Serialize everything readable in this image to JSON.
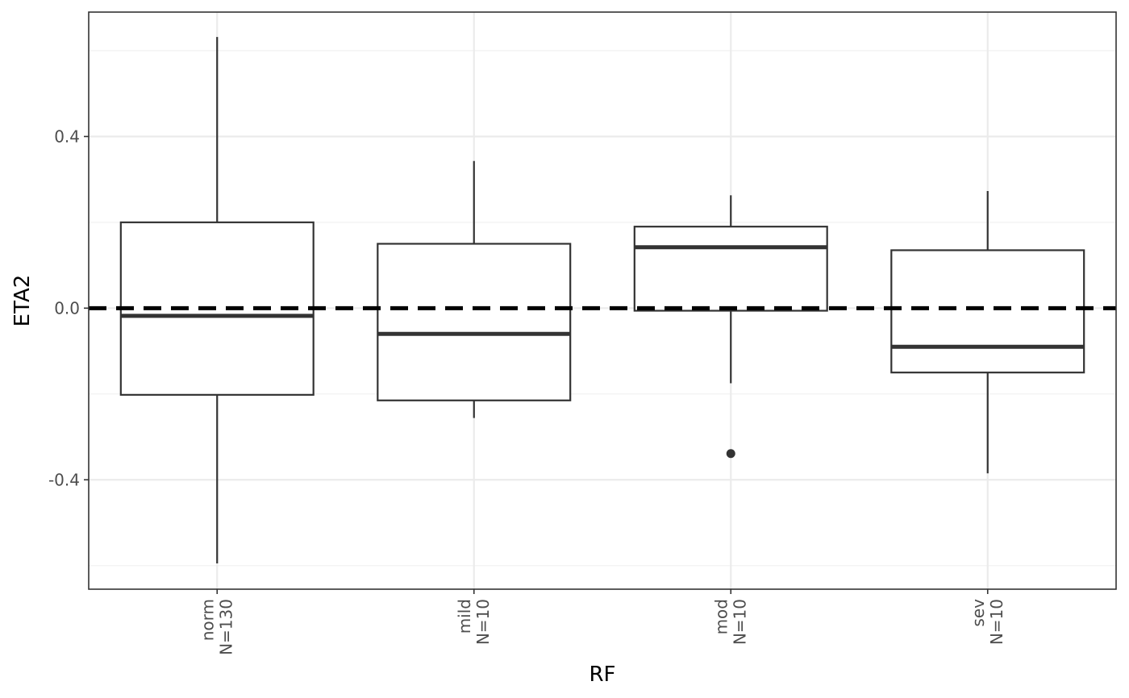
{
  "chart_data": {
    "type": "boxplot",
    "title": "",
    "xlabel": "RF",
    "ylabel": "ETA2",
    "ylim": [
      -0.655,
      0.69
    ],
    "yticks": [
      {
        "value": -0.4,
        "label": "-0.4"
      },
      {
        "value": 0.0,
        "label": "0.0"
      },
      {
        "value": 0.4,
        "label": "0.4"
      }
    ],
    "y_minor_gridlines": [
      -0.6,
      -0.2,
      0.2,
      0.6
    ],
    "grid": true,
    "legend": "none",
    "reference_line": {
      "y": 0.0,
      "style": "dashed",
      "color": "#000000"
    },
    "categories": [
      {
        "name": "norm",
        "n_label": "N=130"
      },
      {
        "name": "mild",
        "n_label": "N=10"
      },
      {
        "name": "mod",
        "n_label": "N=10"
      },
      {
        "name": "sev",
        "n_label": "N=10"
      }
    ],
    "boxes": [
      {
        "category": "norm",
        "whisker_low": -0.595,
        "q1": -0.202,
        "median": -0.018,
        "q3": 0.2,
        "whisker_high": 0.632,
        "outliers": []
      },
      {
        "category": "mild",
        "whisker_low": -0.256,
        "q1": -0.215,
        "median": -0.06,
        "q3": 0.15,
        "whisker_high": 0.343,
        "outliers": []
      },
      {
        "category": "mod",
        "whisker_low": -0.175,
        "q1": -0.006,
        "median": 0.142,
        "q3": 0.19,
        "whisker_high": 0.263,
        "outliers": [
          -0.339
        ]
      },
      {
        "category": "sev",
        "whisker_low": -0.385,
        "q1": -0.15,
        "median": -0.09,
        "q3": 0.135,
        "whisker_high": 0.273,
        "outliers": []
      }
    ],
    "colors": {
      "box_outline": "#333333",
      "panel_border": "#333333",
      "grid_major": "#ebebeb",
      "grid_minor": "#f2f2f2",
      "background": "#ffffff",
      "reference_line": "#000000"
    }
  }
}
